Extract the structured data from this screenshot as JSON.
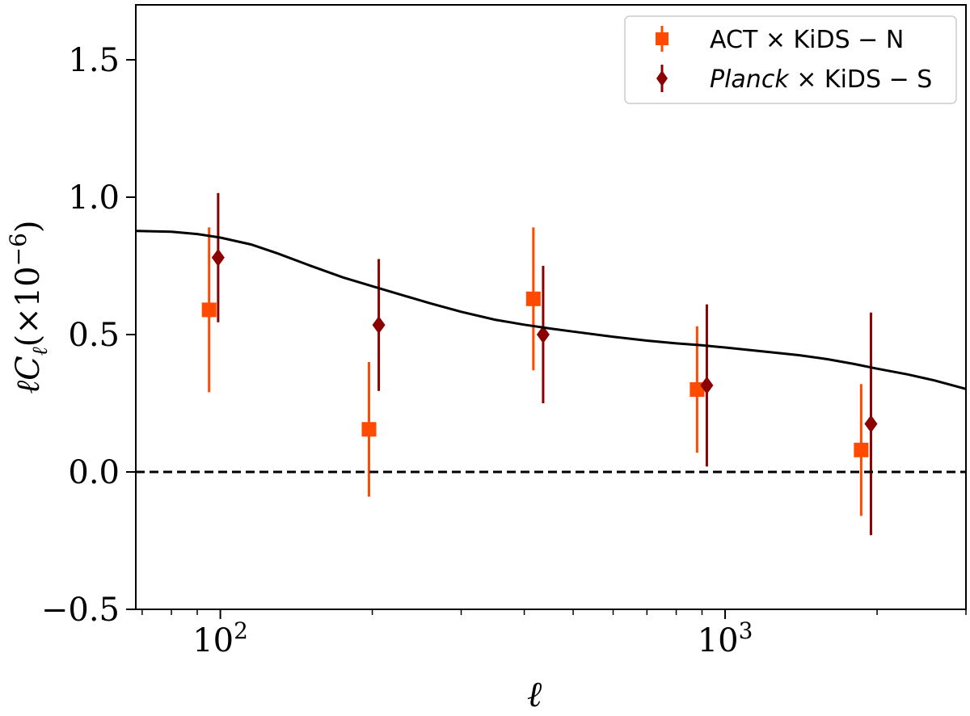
{
  "chart_data": {
    "type": "scatter",
    "title": "",
    "xlabel": "ℓ",
    "ylabel": "ℓC",
    "ylabel_subscript": "ℓ",
    "ylabel_units": "(×10",
    "ylabel_exponent": "−6",
    "ylabel_close": ")",
    "xscale": "log",
    "xlim": [
      68,
      3000
    ],
    "ylim": [
      -0.5,
      1.7
    ],
    "x_major_ticks": [
      {
        "value": 100,
        "base": "10",
        "exp": "2"
      },
      {
        "value": 1000,
        "base": "10",
        "exp": "3"
      }
    ],
    "y_ticks": [
      {
        "value": -0.5,
        "label": "−0.5"
      },
      {
        "value": 0.0,
        "label": "0.0"
      },
      {
        "value": 0.5,
        "label": "0.5"
      },
      {
        "value": 1.0,
        "label": "1.0"
      },
      {
        "value": 1.5,
        "label": "1.5"
      }
    ],
    "series": [
      {
        "name": "ACT × KiDS − N",
        "name_prefix": "ACT",
        "name_italic": "",
        "name_suffix": " × KiDS − N",
        "marker": "square",
        "color": "#ff4a00",
        "x": [
          95,
          197,
          417,
          880,
          1860
        ],
        "y": [
          0.59,
          0.155,
          0.63,
          0.3,
          0.08
        ],
        "yerr": [
          0.3,
          0.245,
          0.26,
          0.23,
          0.24
        ]
      },
      {
        "name": "Planck × KiDS − S",
        "name_prefix": "",
        "name_italic": "Planck",
        "name_suffix": " × KiDS − S",
        "marker": "diamond",
        "color": "#8b0000",
        "x": [
          99,
          206,
          436,
          920,
          1945
        ],
        "y": [
          0.78,
          0.535,
          0.5,
          0.315,
          0.175
        ],
        "yerr": [
          0.235,
          0.24,
          0.25,
          0.295,
          0.405
        ]
      }
    ],
    "model_curve": {
      "name": "theory",
      "color": "#000000",
      "x": [
        68,
        80,
        90,
        100,
        115,
        130,
        150,
        175,
        200,
        230,
        260,
        300,
        350,
        400,
        450,
        500,
        600,
        700,
        800,
        900,
        1000,
        1200,
        1400,
        1600,
        1800,
        2000,
        2300,
        2600,
        3000
      ],
      "y": [
        0.877,
        0.874,
        0.866,
        0.853,
        0.828,
        0.795,
        0.752,
        0.708,
        0.676,
        0.643,
        0.614,
        0.583,
        0.554,
        0.536,
        0.522,
        0.511,
        0.492,
        0.478,
        0.468,
        0.461,
        0.453,
        0.438,
        0.425,
        0.41,
        0.393,
        0.376,
        0.355,
        0.333,
        0.302
      ]
    },
    "reference_line": {
      "y": 0.0,
      "style": "dashed",
      "color": "#000000"
    },
    "legend_position": "top-right",
    "grid": false
  }
}
